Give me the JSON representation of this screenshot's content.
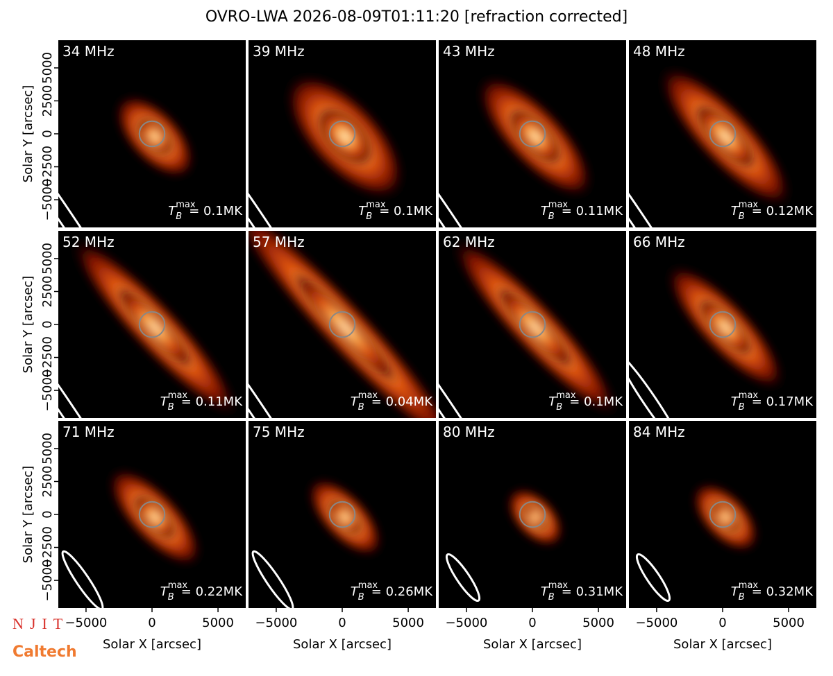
{
  "title": "OVRO-LWA 2026-08-09T01:11:20 [refraction corrected]",
  "logos": {
    "njit": "NJIT",
    "caltech": "Caltech"
  },
  "tb_symbol": {
    "base": "T",
    "sub": "B",
    "sup": "max"
  },
  "chart_data": [
    {
      "type": "image",
      "title": "34 MHz",
      "annotation": "= 0.1MK",
      "xlim": [
        -7100,
        7100
      ],
      "ylim": [
        -7100,
        7100
      ],
      "ylabel": "Solar Y [arcsec]",
      "yticks": [
        {
          "value": -5000,
          "label": "−5000"
        },
        {
          "value": -2500,
          "label": "−2500"
        },
        0,
        2500,
        5000
      ]
    },
    {
      "type": "image",
      "title": "39 MHz",
      "annotation": "= 0.1MK",
      "xlim": [
        -7100,
        7100
      ],
      "ylim": [
        -7100,
        7100
      ]
    },
    {
      "type": "image",
      "title": "43 MHz",
      "annotation": "= 0.11MK",
      "xlim": [
        -7100,
        7100
      ],
      "ylim": [
        -7100,
        7100
      ]
    },
    {
      "type": "image",
      "title": "48 MHz",
      "annotation": "= 0.12MK",
      "xlim": [
        -7100,
        7100
      ],
      "ylim": [
        -7100,
        7100
      ]
    },
    {
      "type": "image",
      "title": "52 MHz",
      "annotation": "= 0.11MK",
      "xlim": [
        -7100,
        7100
      ],
      "ylim": [
        -7100,
        7100
      ],
      "ylabel": "Solar Y [arcsec]",
      "yticks": [
        {
          "value": -5000,
          "label": "−5000"
        },
        {
          "value": -2500,
          "label": "−2500"
        },
        0,
        2500,
        5000
      ]
    },
    {
      "type": "image",
      "title": "57 MHz",
      "annotation": "= 0.04MK",
      "xlim": [
        -7100,
        7100
      ],
      "ylim": [
        -7100,
        7100
      ]
    },
    {
      "type": "image",
      "title": "62 MHz",
      "annotation": "= 0.1MK",
      "xlim": [
        -7100,
        7100
      ],
      "ylim": [
        -7100,
        7100
      ]
    },
    {
      "type": "image",
      "title": "66 MHz",
      "annotation": "= 0.17MK",
      "xlim": [
        -7100,
        7100
      ],
      "ylim": [
        -7100,
        7100
      ]
    },
    {
      "type": "image",
      "title": "71 MHz",
      "annotation": "= 0.22MK",
      "xlim": [
        -7100,
        7100
      ],
      "ylim": [
        -7100,
        7100
      ],
      "ylabel": "Solar Y [arcsec]",
      "yticks": [
        {
          "value": -5000,
          "label": "−5000"
        },
        {
          "value": -2500,
          "label": "−2500"
        },
        0,
        2500,
        5000
      ],
      "xlabel": "Solar X [arcsec]",
      "xticks": [
        {
          "value": -5000,
          "label": "−5000"
        },
        0,
        5000
      ]
    },
    {
      "type": "image",
      "title": "75 MHz",
      "annotation": "= 0.26MK",
      "xlim": [
        -7100,
        7100
      ],
      "ylim": [
        -7100,
        7100
      ],
      "xlabel": "Solar X [arcsec]",
      "xticks": [
        {
          "value": -5000,
          "label": "−5000"
        },
        0,
        5000
      ]
    },
    {
      "type": "image",
      "title": "80 MHz",
      "annotation": "= 0.31MK",
      "xlim": [
        -7100,
        7100
      ],
      "ylim": [
        -7100,
        7100
      ],
      "xlabel": "Solar X [arcsec]",
      "xticks": [
        {
          "value": -5000,
          "label": "−5000"
        },
        0,
        5000
      ]
    },
    {
      "type": "image",
      "title": "84 MHz",
      "annotation": "= 0.32MK",
      "xlim": [
        -7100,
        7100
      ],
      "ylim": [
        -7100,
        7100
      ],
      "xlabel": "Solar X [arcsec]",
      "xticks": [
        {
          "value": -5000,
          "label": "−5000"
        },
        0,
        5000
      ]
    }
  ]
}
